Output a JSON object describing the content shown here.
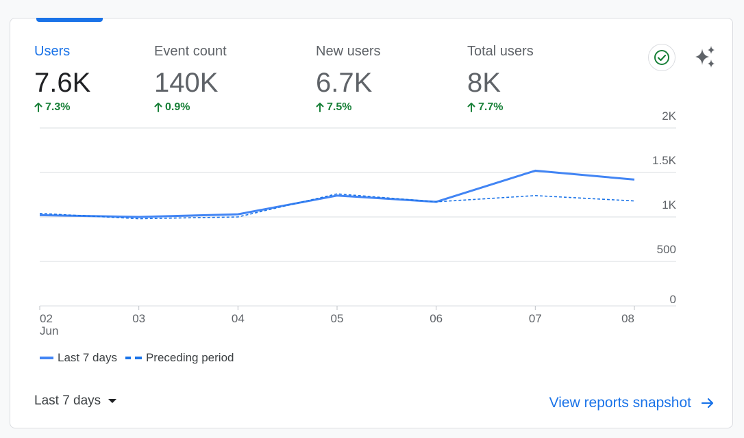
{
  "metrics": [
    {
      "label": "Users",
      "value": "7.6K",
      "change": "7.3%",
      "active": true
    },
    {
      "label": "Event count",
      "value": "140K",
      "change": "0.9%",
      "active": false
    },
    {
      "label": "New users",
      "value": "6.7K",
      "change": "7.5%",
      "active": false
    },
    {
      "label": "Total users",
      "value": "8K",
      "change": "7.7%",
      "active": false
    }
  ],
  "icons": {
    "check": "check-circle-icon",
    "sparkle": "sparkle-icon",
    "dropdown": "caret-down-icon",
    "arrow": "arrow-right-icon"
  },
  "colors": {
    "accent": "#1a73e8",
    "series": "#4285f4",
    "positive": "#188038",
    "grid": "#dadce0"
  },
  "chart_data": {
    "type": "line",
    "x": [
      "02",
      "03",
      "04",
      "05",
      "06",
      "07",
      "08"
    ],
    "x_month_label": "Jun",
    "y_ticks": [
      "0",
      "500",
      "1K",
      "1.5K",
      "2K"
    ],
    "y_tick_values": [
      0,
      500,
      1000,
      1500,
      2000
    ],
    "ylim": [
      0,
      2000
    ],
    "axis_side": "right",
    "grid": true,
    "legend_position": "bottom-left",
    "series": [
      {
        "name": "Last 7 days",
        "style": "solid",
        "values": [
          1020,
          1000,
          1030,
          1240,
          1170,
          1520,
          1420
        ]
      },
      {
        "name": "Preceding period",
        "style": "dashed",
        "values": [
          1040,
          980,
          1000,
          1260,
          1170,
          1240,
          1180
        ]
      }
    ]
  },
  "footer": {
    "date_range": "Last 7 days",
    "snapshot_link": "View reports snapshot"
  }
}
